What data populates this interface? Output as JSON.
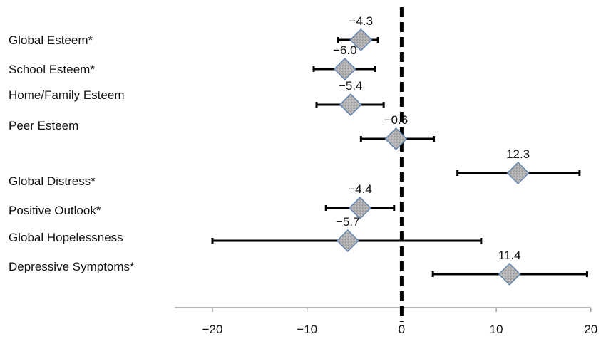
{
  "chart_data": {
    "type": "forest",
    "xlim": [
      -24,
      20
    ],
    "xticks": [
      -20,
      -10,
      0,
      10,
      20
    ],
    "xtick_labels": [
      "−20",
      "−10",
      "0",
      "10",
      "20"
    ],
    "reference_line": 0,
    "grid": false,
    "rows": [
      {
        "label": "Global Esteem*",
        "value": -4.3,
        "value_label": "−4.3",
        "ci": [
          -6.7,
          -2.5
        ]
      },
      {
        "label": "School Esteem*",
        "value": -6.0,
        "value_label": "−6.0",
        "ci": [
          -9.3,
          -2.8
        ]
      },
      {
        "label": "Home/Family Esteem",
        "value": -5.4,
        "value_label": "−5.4",
        "ci": [
          -9.0,
          -1.9
        ]
      },
      {
        "label": "Peer Esteem",
        "value": -0.6,
        "value_label": "−0.6",
        "ci": [
          -4.3,
          3.4
        ]
      },
      {
        "label": "Global Distress*",
        "value": 12.3,
        "value_label": "12.3",
        "ci": [
          5.9,
          18.8
        ]
      },
      {
        "label": "Positive Outlook*",
        "value": -4.4,
        "value_label": "−4.4",
        "ci": [
          -8.0,
          -0.8
        ]
      },
      {
        "label": "Global Hopelessness",
        "value": -5.7,
        "value_label": "−5.7",
        "ci": [
          -20.0,
          8.4
        ]
      },
      {
        "label": "Depressive Symptoms*",
        "value": 11.4,
        "value_label": "11.4",
        "ci": [
          3.3,
          19.6
        ]
      }
    ],
    "colors": {
      "marker_fill": "#b3b3b3",
      "marker_stroke": "#5b7fb5",
      "line": "#000000"
    }
  }
}
